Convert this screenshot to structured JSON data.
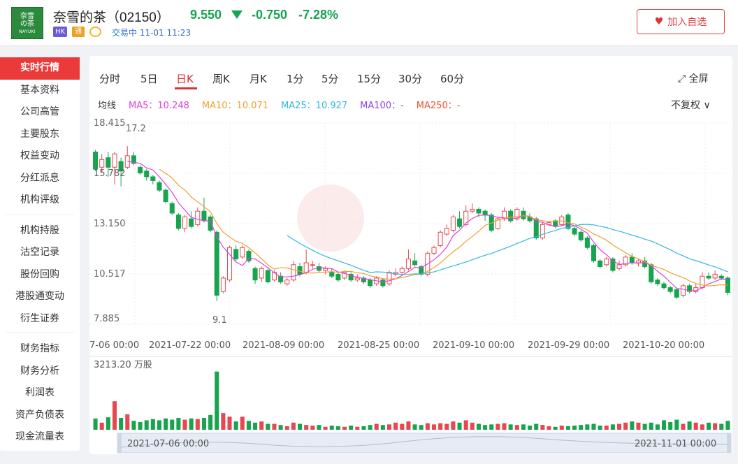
{
  "header": {
    "logo_line1": "奈雪",
    "logo_line2": "の茶",
    "logo_brand": "NAYUKI",
    "stock_name": "奈雪的茶（02150）",
    "price": "9.550",
    "change": "-0.750",
    "change_pct": "-7.28%",
    "badge_hk": "HK",
    "badge_tong": "通",
    "status": "交易中 11-01 11:23",
    "watch_button": "加入自选",
    "down_color": "#17a44f",
    "up_color": "#e8474f"
  },
  "sidebar": {
    "items": [
      "实时行情",
      "基本资料",
      "公司高管",
      "主要股东",
      "权益变动",
      "分红派息",
      "机构评级",
      "机构持股",
      "沽空记录",
      "股份回购",
      "港股通变动",
      "衍生证券",
      "财务指标",
      "财务分析",
      "利润表",
      "资产负债表",
      "现金流量表"
    ],
    "active_index": 0
  },
  "tabs": [
    "分时",
    "5日",
    "日K",
    "周K",
    "月K",
    "1分",
    "5分",
    "15分",
    "30分",
    "60分"
  ],
  "active_tab": "日K",
  "fullscreen_label": "全屏",
  "ma": {
    "label": "均线",
    "items": [
      {
        "text": "MA5：10.248",
        "color": "#e040e0"
      },
      {
        "text": "MA10：10.071",
        "color": "#f0a030"
      },
      {
        "text": "MA25：10.927",
        "color": "#30b8e0"
      },
      {
        "text": "MA100：-",
        "color": "#9040e0"
      },
      {
        "text": "MA250：-",
        "color": "#f05030"
      }
    ]
  },
  "adjust_label": "不复权",
  "chart_data": {
    "type": "candlestick",
    "y_ticks": [
      "18.415",
      "15.782",
      "13.150",
      "10.517",
      "7.885"
    ],
    "ylim": [
      7.885,
      18.415
    ],
    "x_labels": [
      "7-06 00:00",
      "2021-07-22 00:00",
      "2021-08-09 00:00",
      "2021-08-25 00:00",
      "2021-09-10 00:00",
      "2021-09-29 00:00",
      "2021-10-20 00:00"
    ],
    "annotations": [
      "17.2",
      "9.1"
    ],
    "volume_max_label": "3213.20 万股",
    "range_start": "2021-07-06 00:00",
    "range_end": "2021-11-01 00:00",
    "candles": [
      [
        16.9,
        16.0,
        17.0,
        15.9
      ],
      [
        16.1,
        16.5,
        16.8,
        15.8
      ],
      [
        16.6,
        16.1,
        16.9,
        15.6
      ],
      [
        16.1,
        16.8,
        16.9,
        15.2
      ],
      [
        16.4,
        15.9,
        16.6,
        15.1
      ],
      [
        16.1,
        16.7,
        17.2,
        16.0
      ],
      [
        16.7,
        16.3,
        16.9,
        16.2
      ],
      [
        16.1,
        15.8,
        16.2,
        15.7
      ],
      [
        15.9,
        15.6,
        16.0,
        15.4
      ],
      [
        15.6,
        15.4,
        15.7,
        15.2
      ],
      [
        15.3,
        14.9,
        15.4,
        14.8
      ],
      [
        14.9,
        14.3,
        15.0,
        14.2
      ],
      [
        14.2,
        13.7,
        14.3,
        13.6
      ],
      [
        13.6,
        12.9,
        13.7,
        12.8
      ],
      [
        12.9,
        13.5,
        13.6,
        12.7
      ],
      [
        13.4,
        13.0,
        13.8,
        12.9
      ],
      [
        13.1,
        13.8,
        14.0,
        13.0
      ],
      [
        13.8,
        13.3,
        14.5,
        13.2
      ],
      [
        13.5,
        12.8,
        13.6,
        12.7
      ],
      [
        12.7,
        9.4,
        12.8,
        9.1
      ],
      [
        9.6,
        10.3,
        10.4,
        9.5
      ],
      [
        10.2,
        11.9,
        12.0,
        10.1
      ],
      [
        11.8,
        11.3,
        12.0,
        11.2
      ],
      [
        11.4,
        11.9,
        12.0,
        11.3
      ],
      [
        11.7,
        11.2,
        11.8,
        11.1
      ],
      [
        10.8,
        10.2,
        10.9,
        10.0
      ],
      [
        10.3,
        10.8,
        10.9,
        10.1
      ],
      [
        10.7,
        10.1,
        10.8,
        10.0
      ],
      [
        10.2,
        10.6,
        10.7,
        10.1
      ],
      [
        10.4,
        10.1,
        10.6,
        10.0
      ],
      [
        10.0,
        10.2,
        10.3,
        9.9
      ],
      [
        10.2,
        11.0,
        11.2,
        10.1
      ],
      [
        10.9,
        10.5,
        11.1,
        10.4
      ],
      [
        10.6,
        11.1,
        11.8,
        10.5
      ],
      [
        11.0,
        11.0,
        11.2,
        10.8
      ],
      [
        10.9,
        10.7,
        11.1,
        10.6
      ],
      [
        10.7,
        10.8,
        10.9,
        10.5
      ],
      [
        10.6,
        10.4,
        10.8,
        10.3
      ],
      [
        10.5,
        10.2,
        10.6,
        10.1
      ],
      [
        10.3,
        10.6,
        10.7,
        10.2
      ],
      [
        10.5,
        10.2,
        10.6,
        10.1
      ],
      [
        10.2,
        10.3,
        10.5,
        10.1
      ],
      [
        10.3,
        10.1,
        10.4,
        10.0
      ],
      [
        10.2,
        9.9,
        10.3,
        9.8
      ],
      [
        10.0,
        10.3,
        10.4,
        9.9
      ],
      [
        10.2,
        9.9,
        10.3,
        9.8
      ],
      [
        10.0,
        10.6,
        10.7,
        9.9
      ],
      [
        10.5,
        10.6,
        10.8,
        10.4
      ],
      [
        10.6,
        10.8,
        10.9,
        10.5
      ],
      [
        10.8,
        11.3,
        11.8,
        10.7
      ],
      [
        11.2,
        11.0,
        11.6,
        10.9
      ],
      [
        10.9,
        10.5,
        11.0,
        10.4
      ],
      [
        10.5,
        11.6,
        11.7,
        10.4
      ],
      [
        11.6,
        11.9,
        12.0,
        11.5
      ],
      [
        12.0,
        12.7,
        12.8,
        11.9
      ],
      [
        12.6,
        12.9,
        13.1,
        12.5
      ],
      [
        12.8,
        13.5,
        13.6,
        12.7
      ],
      [
        13.4,
        13.0,
        13.8,
        12.9
      ],
      [
        13.1,
        13.8,
        14.1,
        13.0
      ],
      [
        13.8,
        13.9,
        14.2,
        13.7
      ],
      [
        13.9,
        13.7,
        14.0,
        13.5
      ],
      [
        13.8,
        13.6,
        13.9,
        13.3
      ],
      [
        13.6,
        12.8,
        13.7,
        12.7
      ],
      [
        12.9,
        13.4,
        13.5,
        12.8
      ],
      [
        13.4,
        13.8,
        14.0,
        13.3
      ],
      [
        13.8,
        13.3,
        13.9,
        13.2
      ],
      [
        13.4,
        13.9,
        14.0,
        13.3
      ],
      [
        13.8,
        13.4,
        14.0,
        13.3
      ],
      [
        13.5,
        13.3,
        13.7,
        13.2
      ],
      [
        13.4,
        12.4,
        13.5,
        12.3
      ],
      [
        12.4,
        13.1,
        13.2,
        12.3
      ],
      [
        13.1,
        13.2,
        13.3,
        13.0
      ],
      [
        13.3,
        13.0,
        13.4,
        12.9
      ],
      [
        13.1,
        13.5,
        13.6,
        13.0
      ],
      [
        13.6,
        12.9,
        13.7,
        12.8
      ],
      [
        12.9,
        12.6,
        13.0,
        12.5
      ],
      [
        12.7,
        12.3,
        12.8,
        12.2
      ],
      [
        12.4,
        11.9,
        12.5,
        11.8
      ],
      [
        12.0,
        11.2,
        12.1,
        11.1
      ],
      [
        11.2,
        10.9,
        11.3,
        10.8
      ],
      [
        11.0,
        11.3,
        11.4,
        10.9
      ],
      [
        11.3,
        10.7,
        11.4,
        10.6
      ],
      [
        10.8,
        11.0,
        11.2,
        10.7
      ],
      [
        11.0,
        11.4,
        11.5,
        10.9
      ],
      [
        11.4,
        11.1,
        11.6,
        11.0
      ],
      [
        11.1,
        11.2,
        11.3,
        10.9
      ],
      [
        11.2,
        10.9,
        11.4,
        10.8
      ],
      [
        11.0,
        10.1,
        11.1,
        10.0
      ],
      [
        10.2,
        10.0,
        10.3,
        9.9
      ],
      [
        10.0,
        9.8,
        10.1,
        9.7
      ],
      [
        9.8,
        9.6,
        9.9,
        9.5
      ],
      [
        9.7,
        9.3,
        9.8,
        9.2
      ],
      [
        9.4,
        9.9,
        10.0,
        9.3
      ],
      [
        9.9,
        9.6,
        10.0,
        9.5
      ],
      [
        9.6,
        9.8,
        10.0,
        9.5
      ],
      [
        9.8,
        10.4,
        10.6,
        9.7
      ],
      [
        10.4,
        10.3,
        10.6,
        10.2
      ],
      [
        10.3,
        10.5,
        10.7,
        10.2
      ],
      [
        10.4,
        10.3,
        10.5,
        10.2
      ],
      [
        10.3,
        9.55,
        10.4,
        9.4
      ]
    ],
    "volumes": [
      0.19,
      0.12,
      0.21,
      0.48,
      0.2,
      0.26,
      0.15,
      0.13,
      0.16,
      0.18,
      0.16,
      0.19,
      0.17,
      0.2,
      0.17,
      0.19,
      0.18,
      0.2,
      0.25,
      0.98,
      0.28,
      0.22,
      0.14,
      0.22,
      0.15,
      0.12,
      0.14,
      0.1,
      0.1,
      0.08,
      0.06,
      0.12,
      0.1,
      0.08,
      0.07,
      0.08,
      0.05,
      0.07,
      0.06,
      0.05,
      0.07,
      0.05,
      0.06,
      0.08,
      0.1,
      0.08,
      0.09,
      0.12,
      0.1,
      0.14,
      0.09,
      0.08,
      0.11,
      0.09,
      0.11,
      0.1,
      0.14,
      0.12,
      0.16,
      0.12,
      0.1,
      0.08,
      0.09,
      0.1,
      0.11,
      0.09,
      0.08,
      0.09,
      0.07,
      0.1,
      0.08,
      0.06,
      0.05,
      0.07,
      0.06,
      0.07,
      0.08,
      0.09,
      0.1,
      0.07,
      0.07,
      0.09,
      0.1,
      0.12,
      0.14,
      0.12,
      0.1,
      0.12,
      0.09,
      0.16,
      0.13,
      0.17,
      0.1,
      0.14,
      0.12,
      0.09,
      0.12,
      0.11,
      0.1,
      0.15
    ]
  }
}
